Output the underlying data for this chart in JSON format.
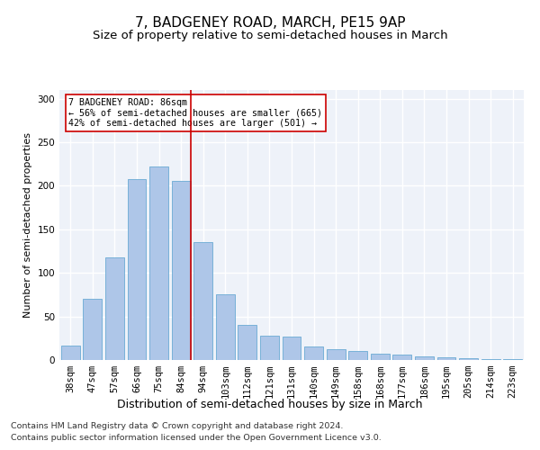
{
  "title": "7, BADGENEY ROAD, MARCH, PE15 9AP",
  "subtitle": "Size of property relative to semi-detached houses in March",
  "xlabel": "Distribution of semi-detached houses by size in March",
  "ylabel": "Number of semi-detached properties",
  "categories": [
    "38sqm",
    "47sqm",
    "57sqm",
    "66sqm",
    "75sqm",
    "84sqm",
    "94sqm",
    "103sqm",
    "112sqm",
    "121sqm",
    "131sqm",
    "140sqm",
    "149sqm",
    "158sqm",
    "168sqm",
    "177sqm",
    "186sqm",
    "195sqm",
    "205sqm",
    "214sqm",
    "223sqm"
  ],
  "values": [
    17,
    70,
    118,
    208,
    222,
    206,
    135,
    75,
    40,
    28,
    27,
    15,
    12,
    10,
    7,
    6,
    4,
    3,
    2,
    1,
    1
  ],
  "bar_color": "#aec6e8",
  "bar_edge_color": "#6aaad4",
  "highlight_line_color": "#cc0000",
  "annotation_box_text": "7 BADGENEY ROAD: 86sqm\n← 56% of semi-detached houses are smaller (665)\n42% of semi-detached houses are larger (501) →",
  "annotation_box_color": "#cc0000",
  "ylim": [
    0,
    310
  ],
  "yticks": [
    0,
    50,
    100,
    150,
    200,
    250,
    300
  ],
  "footnote1": "Contains HM Land Registry data © Crown copyright and database right 2024.",
  "footnote2": "Contains public sector information licensed under the Open Government Licence v3.0.",
  "background_color": "#eef2f9",
  "grid_color": "#ffffff",
  "title_fontsize": 11,
  "subtitle_fontsize": 9.5,
  "xlabel_fontsize": 9,
  "ylabel_fontsize": 8,
  "tick_fontsize": 7.5,
  "footnote_fontsize": 6.8,
  "red_line_x": 5.43
}
